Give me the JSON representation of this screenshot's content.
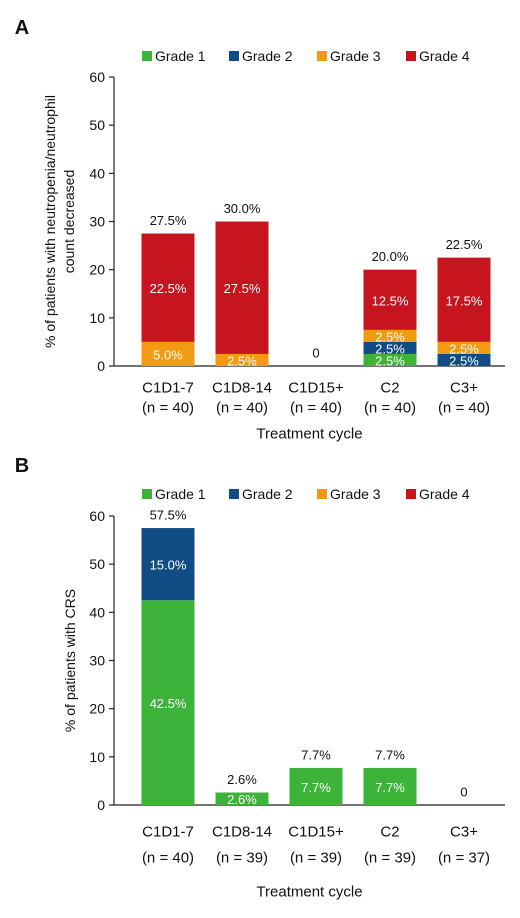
{
  "colors": {
    "grade1": "#3db33a",
    "grade2": "#124c84",
    "grade3": "#f39a13",
    "grade4": "#c7151f",
    "axis": "#222222"
  },
  "chart_data": [
    {
      "panel_label": "A",
      "type": "bar",
      "stacked": true,
      "title": "",
      "xlabel": "Treatment cycle",
      "ylabel": "% of patients with neutropenia/neutrophil count decreased",
      "ylim": [
        0,
        60
      ],
      "yticks": [
        0,
        10,
        20,
        30,
        40,
        50,
        60
      ],
      "legend_position": "top",
      "categories": [
        "C1D1-7",
        "C1D8-14",
        "C1D15+",
        "C2",
        "C3+"
      ],
      "category_n": [
        "(n = 40)",
        "(n = 40)",
        "(n = 40)",
        "(n = 40)",
        "(n = 40)"
      ],
      "series": [
        {
          "name": "Grade 1",
          "color_key": "grade1",
          "values": [
            0,
            0,
            0,
            2.5,
            0
          ],
          "labels": [
            "",
            "",
            "",
            "2.5%",
            ""
          ]
        },
        {
          "name": "Grade 2",
          "color_key": "grade2",
          "values": [
            0,
            0,
            0,
            2.5,
            2.5
          ],
          "labels": [
            "",
            "",
            "",
            "2.5%",
            "2.5%"
          ]
        },
        {
          "name": "Grade 3",
          "color_key": "grade3",
          "values": [
            5.0,
            2.5,
            0,
            2.5,
            2.5
          ],
          "labels": [
            "5.0%",
            "2.5%",
            "",
            "2.5%",
            "2.5%"
          ]
        },
        {
          "name": "Grade 4",
          "color_key": "grade4",
          "values": [
            22.5,
            27.5,
            0,
            12.5,
            17.5
          ],
          "labels": [
            "22.5%",
            "27.5%",
            "",
            "12.5%",
            "17.5%"
          ]
        }
      ],
      "totals": [
        27.5,
        30.0,
        0,
        20.0,
        22.5
      ],
      "total_labels": [
        "27.5%",
        "30.0%",
        "0",
        "20.0%",
        "22.5%"
      ]
    },
    {
      "panel_label": "B",
      "type": "bar",
      "stacked": true,
      "title": "",
      "xlabel": "Treatment cycle",
      "ylabel": "% of patients with CRS",
      "ylim": [
        0,
        60
      ],
      "yticks": [
        0,
        10,
        20,
        30,
        40,
        50,
        60
      ],
      "legend_position": "top",
      "categories": [
        "C1D1-7",
        "C1D8-14",
        "C1D15+",
        "C2",
        "C3+"
      ],
      "category_n": [
        "(n = 40)",
        "(n = 39)",
        "(n = 39)",
        "(n = 39)",
        "(n = 37)"
      ],
      "series": [
        {
          "name": "Grade 1",
          "color_key": "grade1",
          "values": [
            42.5,
            2.6,
            7.7,
            7.7,
            0
          ],
          "labels": [
            "42.5%",
            "2.6%",
            "7.7%",
            "7.7%",
            ""
          ]
        },
        {
          "name": "Grade 2",
          "color_key": "grade2",
          "values": [
            15.0,
            0,
            0,
            0,
            0
          ],
          "labels": [
            "15.0%",
            "",
            "",
            "",
            ""
          ]
        },
        {
          "name": "Grade 3",
          "color_key": "grade3",
          "values": [
            0,
            0,
            0,
            0,
            0
          ],
          "labels": [
            "",
            "",
            "",
            "",
            ""
          ]
        },
        {
          "name": "Grade 4",
          "color_key": "grade4",
          "values": [
            0,
            0,
            0,
            0,
            0
          ],
          "labels": [
            "",
            "",
            "",
            "",
            ""
          ]
        }
      ],
      "totals": [
        57.5,
        2.6,
        7.7,
        7.7,
        0
      ],
      "total_labels": [
        "57.5%",
        "2.6%",
        "7.7%",
        "7.7%",
        "0"
      ]
    }
  ]
}
